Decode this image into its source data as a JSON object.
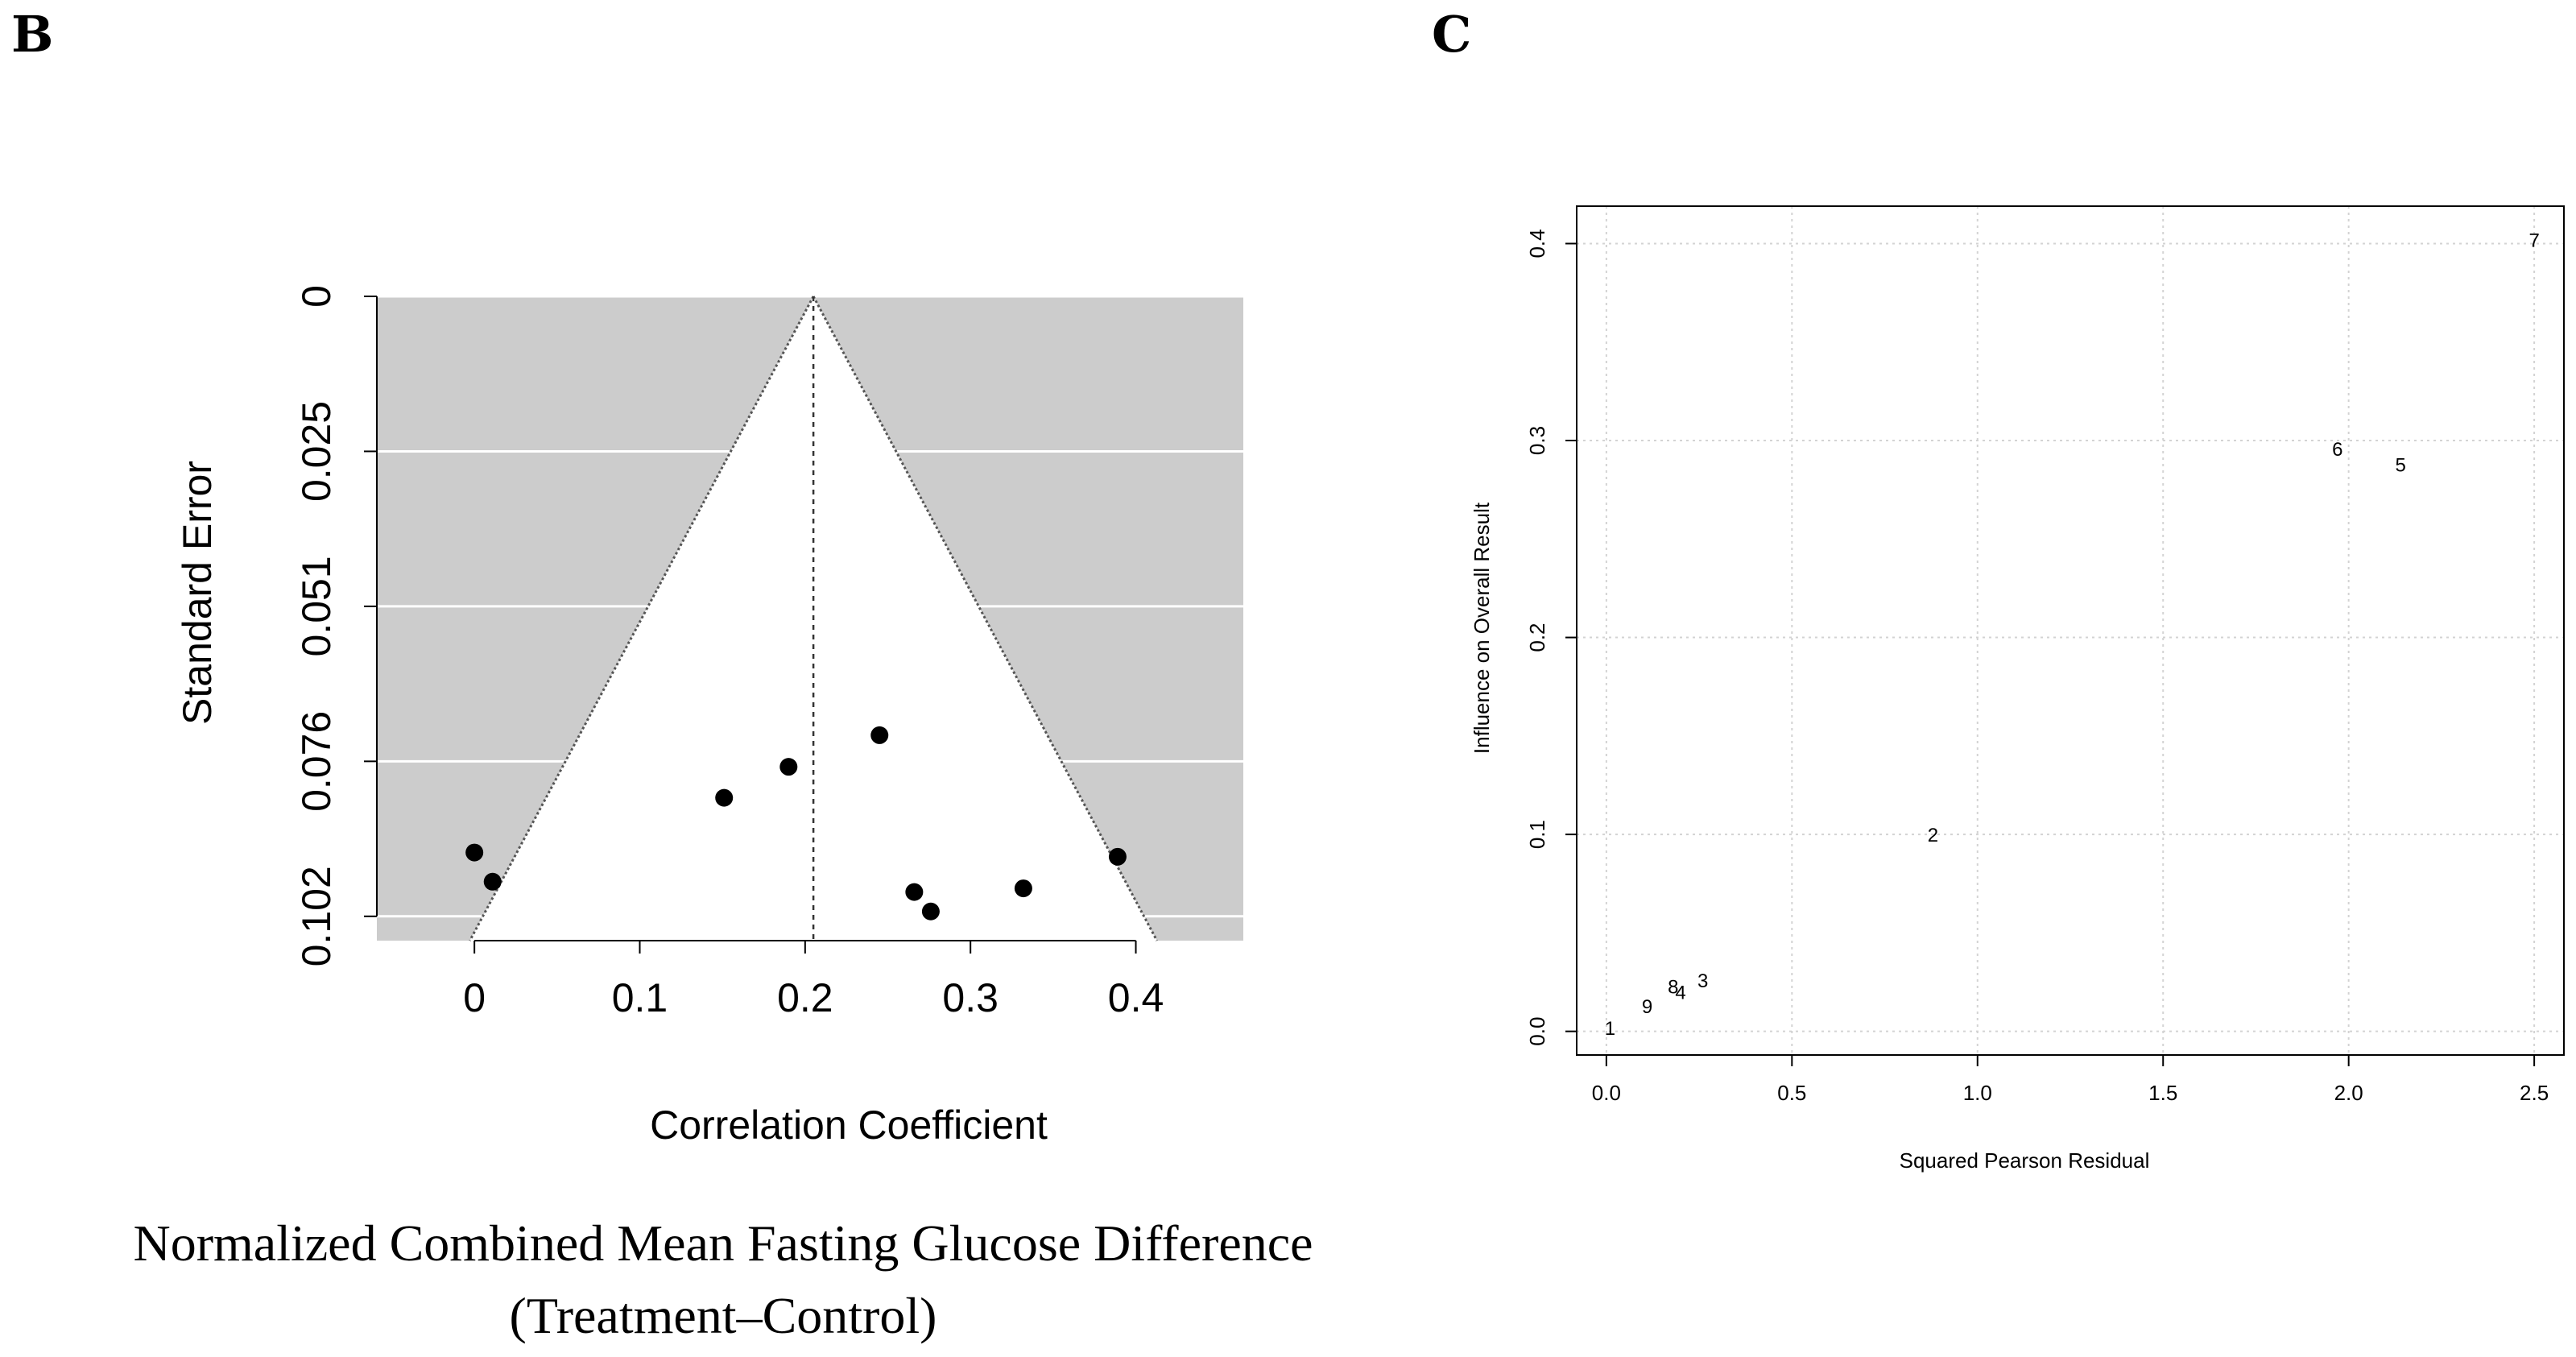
{
  "panels": {
    "b_label": "B",
    "c_label": "C"
  },
  "caption": {
    "line1": "Normalized Combined Mean Fasting Glucose Difference",
    "line2": "(Treatment–Control)"
  },
  "colors": {
    "funnel_background": "#cccccc",
    "point": "#000000",
    "grid_dotted": "#d3d3d3"
  },
  "chart_data": [
    {
      "type": "scatter",
      "name": "funnel-plot",
      "xlabel": "Correlation Coefficient",
      "ylabel": "Standard Error",
      "xlim": [
        -0.059,
        0.465
      ],
      "ylim": [
        0,
        0.106
      ],
      "y_reversed": true,
      "xticks": [
        0,
        0.1,
        0.2,
        0.3,
        0.4
      ],
      "xtick_labels": [
        "0",
        "0.1",
        "0.2",
        "0.3",
        "0.4"
      ],
      "yticks": [
        0,
        0.0255,
        0.051,
        0.0765,
        0.102
      ],
      "ytick_labels": [
        "0",
        "0.025",
        "0.051",
        "0.076",
        "0.102"
      ],
      "pooled_estimate": 0.205,
      "funnel_z": 1.96,
      "points": [
        {
          "x": 0.0,
          "y": 0.0915
        },
        {
          "x": 0.011,
          "y": 0.0963
        },
        {
          "x": 0.151,
          "y": 0.0825
        },
        {
          "x": 0.19,
          "y": 0.0774
        },
        {
          "x": 0.245,
          "y": 0.0722
        },
        {
          "x": 0.266,
          "y": 0.098
        },
        {
          "x": 0.276,
          "y": 0.1012
        },
        {
          "x": 0.332,
          "y": 0.0974
        },
        {
          "x": 0.389,
          "y": 0.0922
        }
      ]
    },
    {
      "type": "scatter",
      "name": "influence-plot",
      "xlabel": "Squared Pearson Residual",
      "ylabel": "Influence on Overall Result",
      "xlim": [
        -0.08,
        2.58
      ],
      "ylim": [
        -0.012,
        0.419
      ],
      "xticks": [
        0,
        0.5,
        1.0,
        1.5,
        2.0,
        2.5
      ],
      "xtick_labels": [
        "0.0",
        "0.5",
        "1.0",
        "1.5",
        "2.0",
        "2.5"
      ],
      "yticks": [
        0,
        0.1,
        0.2,
        0.3,
        0.4
      ],
      "ytick_labels": [
        "0.0",
        "0.1",
        "0.2",
        "0.3",
        "0.4"
      ],
      "points": [
        {
          "label": "1",
          "x": 0.01,
          "y": 0.002
        },
        {
          "label": "9",
          "x": 0.11,
          "y": 0.013
        },
        {
          "label": "8",
          "x": 0.18,
          "y": 0.023
        },
        {
          "label": "4",
          "x": 0.2,
          "y": 0.02
        },
        {
          "label": "3",
          "x": 0.26,
          "y": 0.026
        },
        {
          "label": "2",
          "x": 0.88,
          "y": 0.1
        },
        {
          "label": "6",
          "x": 1.97,
          "y": 0.296
        },
        {
          "label": "5",
          "x": 2.14,
          "y": 0.288
        },
        {
          "label": "7",
          "x": 2.5,
          "y": 0.402
        }
      ]
    }
  ]
}
